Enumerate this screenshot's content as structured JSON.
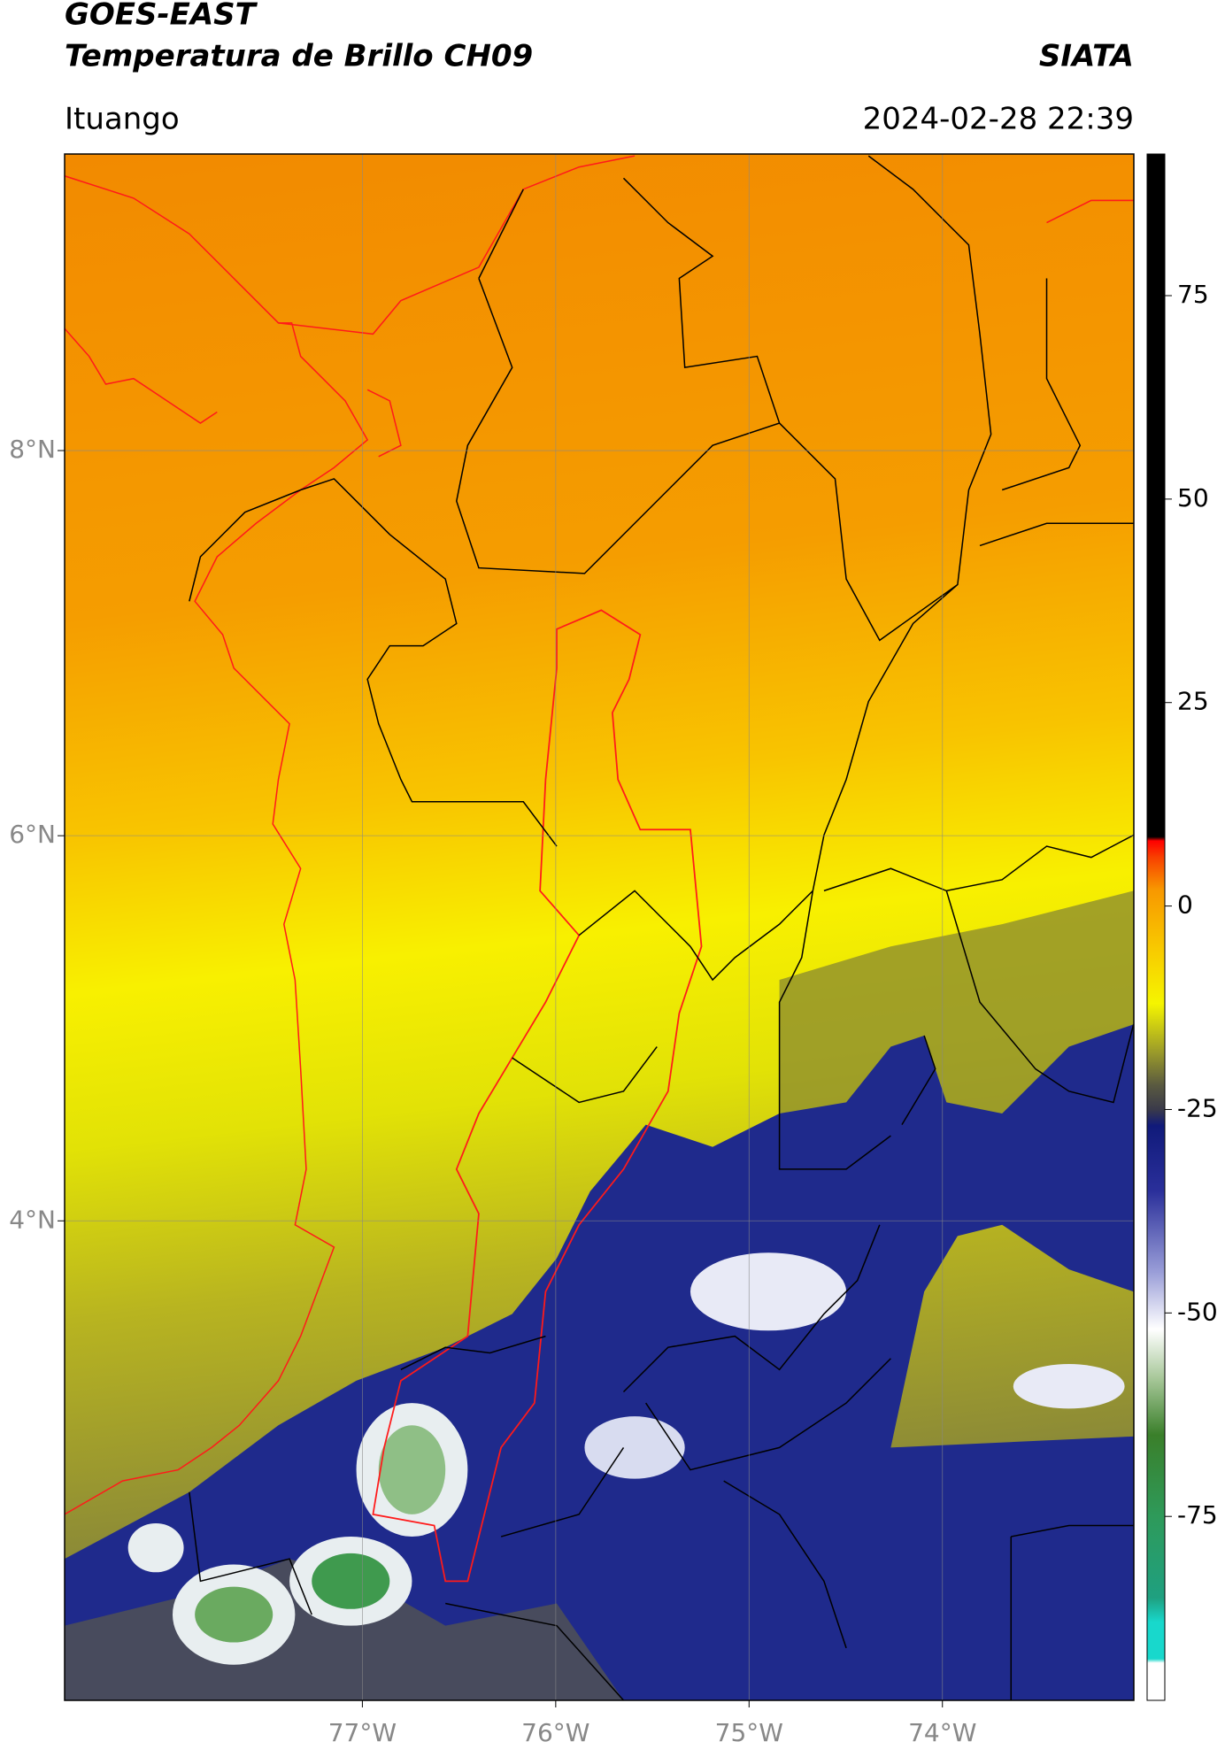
{
  "chart_data": {
    "type": "map",
    "title": "GOES-EAST",
    "subtitle": "Temperatura de Brillo CH09",
    "source": "SIATA",
    "region": "Ituango",
    "datetime": "2024-02-28 22:39",
    "xlim": [
      -78.54,
      -73.01
    ],
    "ylim": [
      1.51,
      9.54
    ],
    "xticks": [
      {
        "value": -77,
        "label": "77°W"
      },
      {
        "value": -76,
        "label": "76°W"
      },
      {
        "value": -75,
        "label": "75°W"
      },
      {
        "value": -74,
        "label": "74°W"
      }
    ],
    "yticks": [
      {
        "value": 4,
        "label": "4°N"
      },
      {
        "value": 6,
        "label": "6°N"
      },
      {
        "value": 8,
        "label": "8°N"
      }
    ],
    "grid": true,
    "colorbar": {
      "lim": [
        -97.6,
        92.4
      ],
      "ticks": [
        -75,
        -50,
        -25,
        0,
        25,
        50,
        75
      ],
      "stops": [
        {
          "value": -97.6,
          "color": "#ffffff"
        },
        {
          "value": -93,
          "color": "#ffffff"
        },
        {
          "value": -92.5,
          "color": "#18d8cc"
        },
        {
          "value": -88,
          "color": "#18d8cc"
        },
        {
          "value": -85,
          "color": "#1fa080"
        },
        {
          "value": -75,
          "color": "#2e9a5a"
        },
        {
          "value": -65,
          "color": "#3a7f2a"
        },
        {
          "value": -58,
          "color": "#a8c89a"
        },
        {
          "value": -52,
          "color": "#ffffff"
        },
        {
          "value": -45,
          "color": "#9a9ed8"
        },
        {
          "value": -35,
          "color": "#2a2f9a"
        },
        {
          "value": -27,
          "color": "#101a7a"
        },
        {
          "value": -25,
          "color": "#3a3a4a"
        },
        {
          "value": -22,
          "color": "#5a5a40"
        },
        {
          "value": -18,
          "color": "#9a9a2a"
        },
        {
          "value": -12,
          "color": "#f5f500"
        },
        {
          "value": -5,
          "color": "#f8c800"
        },
        {
          "value": 2,
          "color": "#f89800"
        },
        {
          "value": 6,
          "color": "#f84000"
        },
        {
          "value": 8,
          "color": "#ff0000"
        },
        {
          "value": 8.5,
          "color": "#000000"
        },
        {
          "value": 92.4,
          "color": "#000000"
        }
      ]
    }
  }
}
